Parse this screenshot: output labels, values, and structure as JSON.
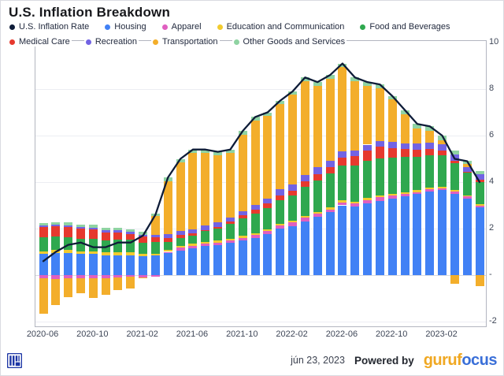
{
  "title": "U.S. Inflation Breakdown",
  "legend": {
    "rows": [
      [
        {
          "label": "U.S. Inflation Rate",
          "color": "#0e1c38"
        },
        {
          "label": "Housing",
          "color": "#4181f5"
        },
        {
          "label": "Apparel",
          "color": "#e05fc0"
        },
        {
          "label": "Education and Communication",
          "color": "#f2cb2e"
        },
        {
          "label": "Food and Beverages",
          "color": "#2fa84f"
        }
      ],
      [
        {
          "label": "Medical Care",
          "color": "#e6392e"
        },
        {
          "label": "Recreation",
          "color": "#7263e3"
        },
        {
          "label": "Transportation",
          "color": "#f3ae2b"
        },
        {
          "label": "Other Goods and Services",
          "color": "#8fd3a2"
        }
      ]
    ]
  },
  "axis": {
    "y_ticks": [
      {
        "label": "10",
        "value": 10
      },
      {
        "label": "8",
        "value": 8
      },
      {
        "label": "6",
        "value": 6
      },
      {
        "label": "4",
        "value": 4
      },
      {
        "label": "2",
        "value": 2
      },
      {
        "label": "-",
        "value": 0
      },
      {
        "label": "-2",
        "value": -2
      }
    ],
    "gridline_values": [
      8,
      6,
      4,
      2,
      0,
      -2
    ],
    "x_tick_every": 4
  },
  "footer": {
    "date": "jún 23, 2023",
    "powered_by": "Powered by",
    "brand_gold": "guruf",
    "brand_blue": "ocus",
    "brand_gold_color": "#f0a822",
    "brand_blue_color": "#3a6fd8",
    "logo_color": "#1d36a5"
  },
  "chart_data": {
    "type": "stacked-bar-with-line",
    "title": "U.S. Inflation Breakdown",
    "ylim": [
      -2.2,
      10.2
    ],
    "grid": true,
    "legend_position": "top",
    "units": "percentage points (YoY)",
    "months": [
      "2020-06",
      "2020-07",
      "2020-08",
      "2020-09",
      "2020-10",
      "2020-11",
      "2020-12",
      "2021-01",
      "2021-02",
      "2021-03",
      "2021-04",
      "2021-05",
      "2021-06",
      "2021-07",
      "2021-08",
      "2021-09",
      "2021-10",
      "2021-11",
      "2021-12",
      "2022-01",
      "2022-02",
      "2022-03",
      "2022-04",
      "2022-05",
      "2022-06",
      "2022-07",
      "2022-08",
      "2022-09",
      "2022-10",
      "2022-11",
      "2022-12",
      "2023-01",
      "2023-02",
      "2023-03",
      "2023-04",
      "2023-05"
    ],
    "series": [
      {
        "name": "Housing",
        "color": "#4181f5",
        "values": [
          0.9,
          0.95,
          0.95,
          0.9,
          0.9,
          0.85,
          0.85,
          0.85,
          0.8,
          0.85,
          0.95,
          1.05,
          1.15,
          1.25,
          1.3,
          1.4,
          1.5,
          1.6,
          1.75,
          2.0,
          2.1,
          2.3,
          2.5,
          2.7,
          3.0,
          2.95,
          3.1,
          3.2,
          3.3,
          3.4,
          3.5,
          3.6,
          3.65,
          3.5,
          3.3,
          2.9
        ]
      },
      {
        "name": "Apparel",
        "color": "#e05fc0",
        "values": [
          -0.15,
          -0.16,
          -0.15,
          -0.12,
          -0.12,
          -0.12,
          -0.1,
          -0.06,
          -0.09,
          -0.06,
          0.05,
          0.14,
          0.12,
          0.11,
          0.1,
          0.08,
          0.11,
          0.13,
          0.14,
          0.13,
          0.16,
          0.17,
          0.14,
          0.13,
          0.13,
          0.13,
          0.13,
          0.14,
          0.11,
          0.09,
          0.07,
          0.08,
          0.08,
          0.08,
          0.08,
          0.09
        ]
      },
      {
        "name": "Education and Communication",
        "color": "#f2cb2e",
        "values": [
          0.12,
          0.12,
          0.12,
          0.12,
          0.12,
          0.12,
          0.12,
          0.12,
          0.1,
          0.08,
          0.08,
          0.08,
          0.08,
          0.08,
          0.08,
          0.08,
          0.08,
          0.08,
          0.08,
          0.08,
          0.08,
          0.08,
          0.08,
          0.08,
          0.08,
          0.08,
          0.08,
          0.08,
          0.08,
          0.08,
          0.08,
          0.08,
          0.08,
          0.07,
          0.06,
          0.07
        ]
      },
      {
        "name": "Food and Beverages",
        "color": "#2fa84f",
        "values": [
          0.6,
          0.58,
          0.55,
          0.55,
          0.55,
          0.52,
          0.55,
          0.55,
          0.5,
          0.5,
          0.35,
          0.33,
          0.35,
          0.45,
          0.52,
          0.65,
          0.75,
          0.85,
          0.9,
          1.0,
          1.1,
          1.25,
          1.35,
          1.45,
          1.5,
          1.55,
          1.6,
          1.6,
          1.55,
          1.5,
          1.45,
          1.4,
          1.35,
          1.15,
          0.95,
          0.95
        ]
      },
      {
        "name": "Medical Care",
        "color": "#e6392e",
        "values": [
          0.45,
          0.45,
          0.45,
          0.42,
          0.4,
          0.35,
          0.32,
          0.25,
          0.25,
          0.2,
          0.18,
          0.12,
          0.08,
          0.05,
          0.08,
          0.08,
          0.12,
          0.15,
          0.2,
          0.22,
          0.2,
          0.25,
          0.28,
          0.3,
          0.35,
          0.4,
          0.45,
          0.5,
          0.42,
          0.35,
          0.3,
          0.25,
          0.2,
          0.1,
          0.05,
          0.08
        ]
      },
      {
        "name": "Recreation",
        "color": "#7263e3",
        "values": [
          0.06,
          0.06,
          0.07,
          0.07,
          0.08,
          0.08,
          0.08,
          0.08,
          0.08,
          0.1,
          0.15,
          0.18,
          0.2,
          0.2,
          0.18,
          0.17,
          0.18,
          0.2,
          0.22,
          0.25,
          0.25,
          0.25,
          0.28,
          0.25,
          0.25,
          0.25,
          0.25,
          0.25,
          0.28,
          0.25,
          0.25,
          0.28,
          0.28,
          0.28,
          0.22,
          0.25
        ]
      },
      {
        "name": "Transportation",
        "color": "#f3ae2b",
        "values": [
          -1.5,
          -1.12,
          -0.81,
          -0.66,
          -0.85,
          -0.72,
          -0.54,
          -0.51,
          -0.06,
          0.81,
          2.29,
          2.95,
          3.27,
          3.11,
          2.89,
          2.79,
          3.31,
          3.64,
          3.56,
          3.67,
          3.86,
          4.05,
          3.52,
          3.54,
          3.64,
          2.99,
          2.54,
          2.28,
          1.81,
          1.25,
          0.67,
          0.51,
          0.16,
          -0.36,
          0.12,
          -0.46
        ]
      },
      {
        "name": "Other Goods and Services",
        "color": "#8fd3a2",
        "values": [
          0.12,
          0.12,
          0.12,
          0.12,
          0.12,
          0.12,
          0.12,
          0.12,
          0.12,
          0.12,
          0.15,
          0.15,
          0.15,
          0.15,
          0.15,
          0.15,
          0.15,
          0.15,
          0.15,
          0.15,
          0.15,
          0.15,
          0.15,
          0.15,
          0.15,
          0.15,
          0.15,
          0.15,
          0.15,
          0.18,
          0.18,
          0.2,
          0.2,
          0.18,
          0.12,
          0.12
        ]
      }
    ],
    "line": {
      "name": "U.S. Inflation Rate",
      "color": "#0e1c38",
      "values": [
        0.6,
        1.0,
        1.3,
        1.4,
        1.2,
        1.2,
        1.4,
        1.4,
        1.7,
        2.6,
        4.2,
        5.0,
        5.4,
        5.4,
        5.3,
        5.4,
        6.2,
        6.8,
        7.0,
        7.5,
        7.9,
        8.5,
        8.3,
        8.6,
        9.1,
        8.5,
        8.3,
        8.2,
        7.7,
        7.1,
        6.5,
        6.4,
        6.0,
        5.0,
        4.9,
        4.0
      ]
    }
  }
}
